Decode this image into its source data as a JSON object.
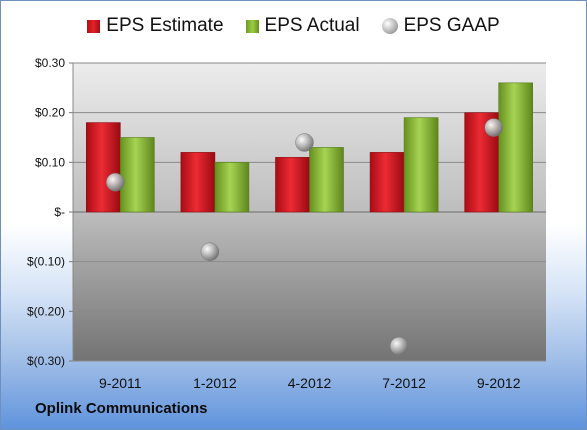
{
  "chart_data": {
    "type": "bar",
    "categories": [
      "9-2011",
      "1-2012",
      "4-2012",
      "7-2012",
      "9-2012"
    ],
    "series": [
      {
        "name": "EPS Estimate",
        "values": [
          0.18,
          0.12,
          0.11,
          0.12,
          0.2
        ],
        "color": "#d8202a"
      },
      {
        "name": "EPS Actual",
        "values": [
          0.15,
          0.1,
          0.13,
          0.19,
          0.26
        ],
        "color": "#8cbc3c"
      },
      {
        "name": "EPS GAAP",
        "values": [
          0.06,
          -0.08,
          0.14,
          -0.27,
          0.17
        ],
        "color": "#a9a9a9",
        "marker": "circle"
      }
    ],
    "ylim": [
      -0.3,
      0.3
    ],
    "yticks": [
      {
        "value": 0.3,
        "label": "$0.30"
      },
      {
        "value": 0.2,
        "label": "$0.20"
      },
      {
        "value": 0.1,
        "label": "$0.10"
      },
      {
        "value": 0.0,
        "label": "$-"
      },
      {
        "value": -0.1,
        "label": "$(0.10)"
      },
      {
        "value": -0.2,
        "label": "$(0.20)"
      },
      {
        "value": -0.3,
        "label": "$(0.30)"
      }
    ],
    "grid": true,
    "legend_position": "top"
  },
  "company": "Oplink Communications"
}
